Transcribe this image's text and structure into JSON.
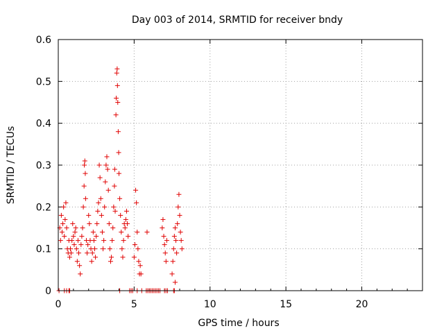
{
  "chart_data": {
    "type": "scatter",
    "title": "Day 003 of 2014, SRMTID for receiver bndy",
    "xlabel": "GPS time / hours",
    "ylabel": "SRMTID / TECUs",
    "xlim": [
      0,
      24
    ],
    "ylim": [
      0,
      0.6
    ],
    "xticks": [
      0,
      5,
      10,
      15,
      20
    ],
    "xtick_labels": [
      "0",
      "5",
      "10",
      "15",
      "20"
    ],
    "yticks": [
      0,
      0.1,
      0.2,
      0.3,
      0.4,
      0.5,
      0.6
    ],
    "ytick_labels": [
      "0",
      "0.1",
      "0.2",
      "0.3",
      "0.4",
      "0.5",
      "0.6"
    ],
    "grid": true,
    "marker": "+",
    "color": "#e00000",
    "series": [
      {
        "name": "SRMTID",
        "points": [
          [
            0.05,
            0.0
          ],
          [
            0.1,
            0.15
          ],
          [
            0.15,
            0.12
          ],
          [
            0.2,
            0.18
          ],
          [
            0.25,
            0.14
          ],
          [
            0.3,
            0.16
          ],
          [
            0.35,
            0.2
          ],
          [
            0.4,
            0.13
          ],
          [
            0.45,
            0.17
          ],
          [
            0.5,
            0.21
          ],
          [
            0.55,
            0.15
          ],
          [
            0.6,
            0.1
          ],
          [
            0.65,
            0.09
          ],
          [
            0.7,
            0.12
          ],
          [
            0.75,
            0.08
          ],
          [
            0.8,
            0.1
          ],
          [
            0.4,
            0.0
          ],
          [
            0.55,
            0.0
          ],
          [
            0.7,
            0.0
          ],
          [
            0.75,
            0.0
          ],
          [
            0.85,
            0.09
          ],
          [
            0.9,
            0.12
          ],
          [
            0.95,
            0.16
          ],
          [
            1.0,
            0.13
          ],
          [
            1.05,
            0.11
          ],
          [
            1.1,
            0.14
          ],
          [
            1.15,
            0.15
          ],
          [
            1.2,
            0.1
          ],
          [
            1.25,
            0.07
          ],
          [
            1.3,
            0.12
          ],
          [
            1.35,
            0.09
          ],
          [
            1.4,
            0.06
          ],
          [
            1.45,
            0.04
          ],
          [
            1.5,
            0.11
          ],
          [
            1.55,
            0.13
          ],
          [
            1.6,
            0.15
          ],
          [
            1.65,
            0.2
          ],
          [
            1.7,
            0.25
          ],
          [
            1.72,
            0.3
          ],
          [
            1.75,
            0.31
          ],
          [
            1.78,
            0.28
          ],
          [
            1.8,
            0.22
          ],
          [
            1.85,
            0.12
          ],
          [
            1.9,
            0.09
          ],
          [
            1.95,
            0.11
          ],
          [
            2.0,
            0.18
          ],
          [
            2.05,
            0.16
          ],
          [
            2.1,
            0.12
          ],
          [
            2.15,
            0.1
          ],
          [
            2.2,
            0.07
          ],
          [
            2.25,
            0.09
          ],
          [
            2.3,
            0.14
          ],
          [
            2.35,
            0.12
          ],
          [
            2.4,
            0.1
          ],
          [
            2.45,
            0.08
          ],
          [
            2.5,
            0.13
          ],
          [
            2.55,
            0.16
          ],
          [
            2.6,
            0.19
          ],
          [
            2.65,
            0.21
          ],
          [
            2.7,
            0.3
          ],
          [
            2.75,
            0.27
          ],
          [
            2.8,
            0.22
          ],
          [
            2.85,
            0.18
          ],
          [
            2.9,
            0.14
          ],
          [
            2.95,
            0.1
          ],
          [
            3.0,
            0.12
          ],
          [
            3.05,
            0.2
          ],
          [
            3.1,
            0.26
          ],
          [
            3.15,
            0.3
          ],
          [
            3.2,
            0.32
          ],
          [
            3.25,
            0.29
          ],
          [
            3.3,
            0.24
          ],
          [
            3.35,
            0.16
          ],
          [
            3.4,
            0.1
          ],
          [
            3.45,
            0.07
          ],
          [
            3.5,
            0.08
          ],
          [
            3.55,
            0.12
          ],
          [
            3.6,
            0.15
          ],
          [
            3.65,
            0.2
          ],
          [
            3.7,
            0.25
          ],
          [
            3.72,
            0.29
          ],
          [
            3.75,
            0.19
          ],
          [
            3.8,
            0.42
          ],
          [
            3.82,
            0.46
          ],
          [
            3.85,
            0.52
          ],
          [
            3.88,
            0.53
          ],
          [
            3.9,
            0.49
          ],
          [
            3.92,
            0.45
          ],
          [
            3.95,
            0.38
          ],
          [
            3.98,
            0.33
          ],
          [
            4.0,
            0.28
          ],
          [
            4.05,
            0.22
          ],
          [
            4.1,
            0.18
          ],
          [
            4.15,
            0.14
          ],
          [
            4.2,
            0.1
          ],
          [
            4.25,
            0.08
          ],
          [
            4.3,
            0.12
          ],
          [
            4.35,
            0.16
          ],
          [
            4.4,
            0.15
          ],
          [
            4.45,
            0.17
          ],
          [
            4.5,
            0.19
          ],
          [
            4.55,
            0.16
          ],
          [
            4.6,
            0.13
          ],
          [
            4.05,
            0.0
          ],
          [
            4.7,
            0.0
          ],
          [
            4.8,
            0.0
          ],
          [
            4.9,
            0.0
          ],
          [
            5.0,
            0.08
          ],
          [
            5.05,
            0.11
          ],
          [
            5.1,
            0.24
          ],
          [
            5.15,
            0.21
          ],
          [
            5.2,
            0.14
          ],
          [
            5.25,
            0.1
          ],
          [
            5.3,
            0.07
          ],
          [
            5.35,
            0.04
          ],
          [
            5.4,
            0.06
          ],
          [
            5.45,
            0.04
          ],
          [
            5.2,
            0.0
          ],
          [
            5.5,
            0.0
          ],
          [
            5.8,
            0.0
          ],
          [
            5.9,
            0.0
          ],
          [
            6.0,
            0.0
          ],
          [
            6.1,
            0.0
          ],
          [
            6.2,
            0.0
          ],
          [
            6.3,
            0.0
          ],
          [
            6.4,
            0.0
          ],
          [
            6.5,
            0.0
          ],
          [
            6.6,
            0.0
          ],
          [
            6.7,
            0.0
          ],
          [
            7.0,
            0.0
          ],
          [
            7.1,
            0.0
          ],
          [
            7.2,
            0.0
          ],
          [
            5.85,
            0.14
          ],
          [
            6.85,
            0.15
          ],
          [
            6.9,
            0.17
          ],
          [
            6.95,
            0.13
          ],
          [
            7.0,
            0.11
          ],
          [
            7.05,
            0.09
          ],
          [
            7.1,
            0.07
          ],
          [
            7.15,
            0.12
          ],
          [
            7.5,
            0.04
          ],
          [
            7.55,
            0.07
          ],
          [
            7.6,
            0.1
          ],
          [
            7.65,
            0.13
          ],
          [
            7.7,
            0.15
          ],
          [
            7.75,
            0.12
          ],
          [
            7.8,
            0.09
          ],
          [
            7.85,
            0.16
          ],
          [
            7.9,
            0.2
          ],
          [
            7.95,
            0.23
          ],
          [
            8.0,
            0.18
          ],
          [
            8.05,
            0.14
          ],
          [
            8.1,
            0.12
          ],
          [
            8.15,
            0.1
          ],
          [
            7.6,
            0.0
          ],
          [
            7.65,
            0.0
          ],
          [
            7.7,
            0.02
          ]
        ]
      }
    ]
  }
}
